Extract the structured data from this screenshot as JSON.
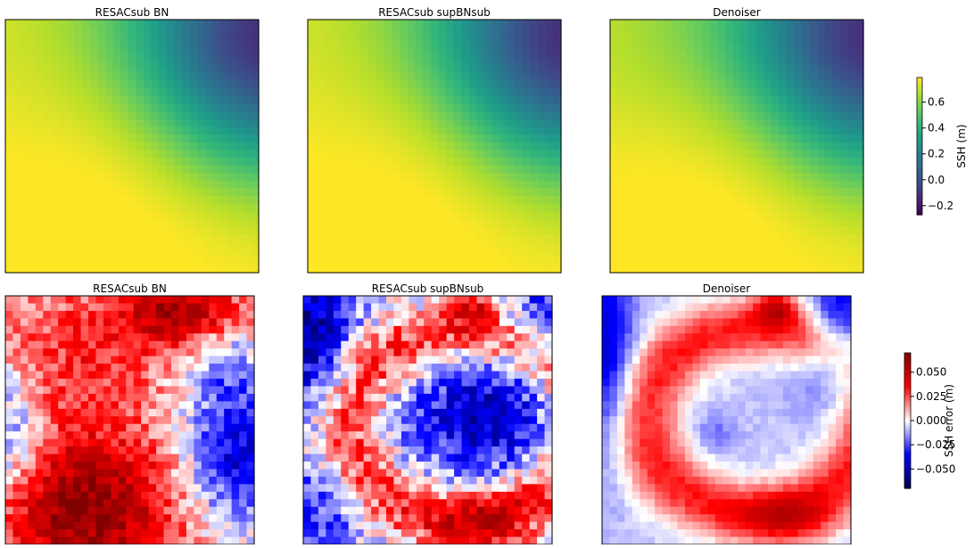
{
  "chart_data": [
    {
      "type": "heatmap",
      "title": "RESACsub BN",
      "field": "ssh",
      "variant": "bn",
      "row": "top",
      "colorbar_label": "SSH (m)"
    },
    {
      "type": "heatmap",
      "title": "RESACsub supBNsub",
      "field": "ssh",
      "variant": "sup",
      "row": "top",
      "colorbar_label": "SSH (m)"
    },
    {
      "type": "heatmap",
      "title": "Denoiser",
      "field": "ssh",
      "variant": "den",
      "row": "top",
      "colorbar_label": "SSH (m)"
    },
    {
      "type": "heatmap",
      "title": "RESACsub BN",
      "field": "ssh_error",
      "variant": "bn",
      "row": "bottom",
      "colorbar_label": "SSH error (m)"
    },
    {
      "type": "heatmap",
      "title": "RESACsub supBNsub",
      "field": "ssh_error",
      "variant": "sup",
      "row": "bottom",
      "colorbar_label": "SSH error (m)"
    },
    {
      "type": "heatmap",
      "title": "Denoiser",
      "field": "ssh_error",
      "variant": "den",
      "row": "bottom",
      "colorbar_label": "SSH error (m)"
    }
  ],
  "colorbars": {
    "ssh": {
      "label": "SSH (m)",
      "colormap": "viridis",
      "range": [
        -0.27,
        0.79
      ],
      "ticks": [
        0.6,
        0.4,
        0.2,
        0.0,
        -0.2
      ],
      "tick_labels": [
        "0.6",
        "0.4",
        "0.2",
        "0.0",
        "−0.2"
      ]
    },
    "ssh_error": {
      "label": "SSH error (m)",
      "colormap": "seismic",
      "range": [
        -0.07,
        0.07
      ],
      "ticks": [
        0.05,
        0.025,
        0.0,
        -0.025,
        -0.05
      ],
      "tick_labels": [
        "0.050",
        "0.025",
        "0.000",
        "−0.025",
        "−0.050"
      ]
    }
  },
  "grid": {
    "rows": 33,
    "cols": 33
  }
}
